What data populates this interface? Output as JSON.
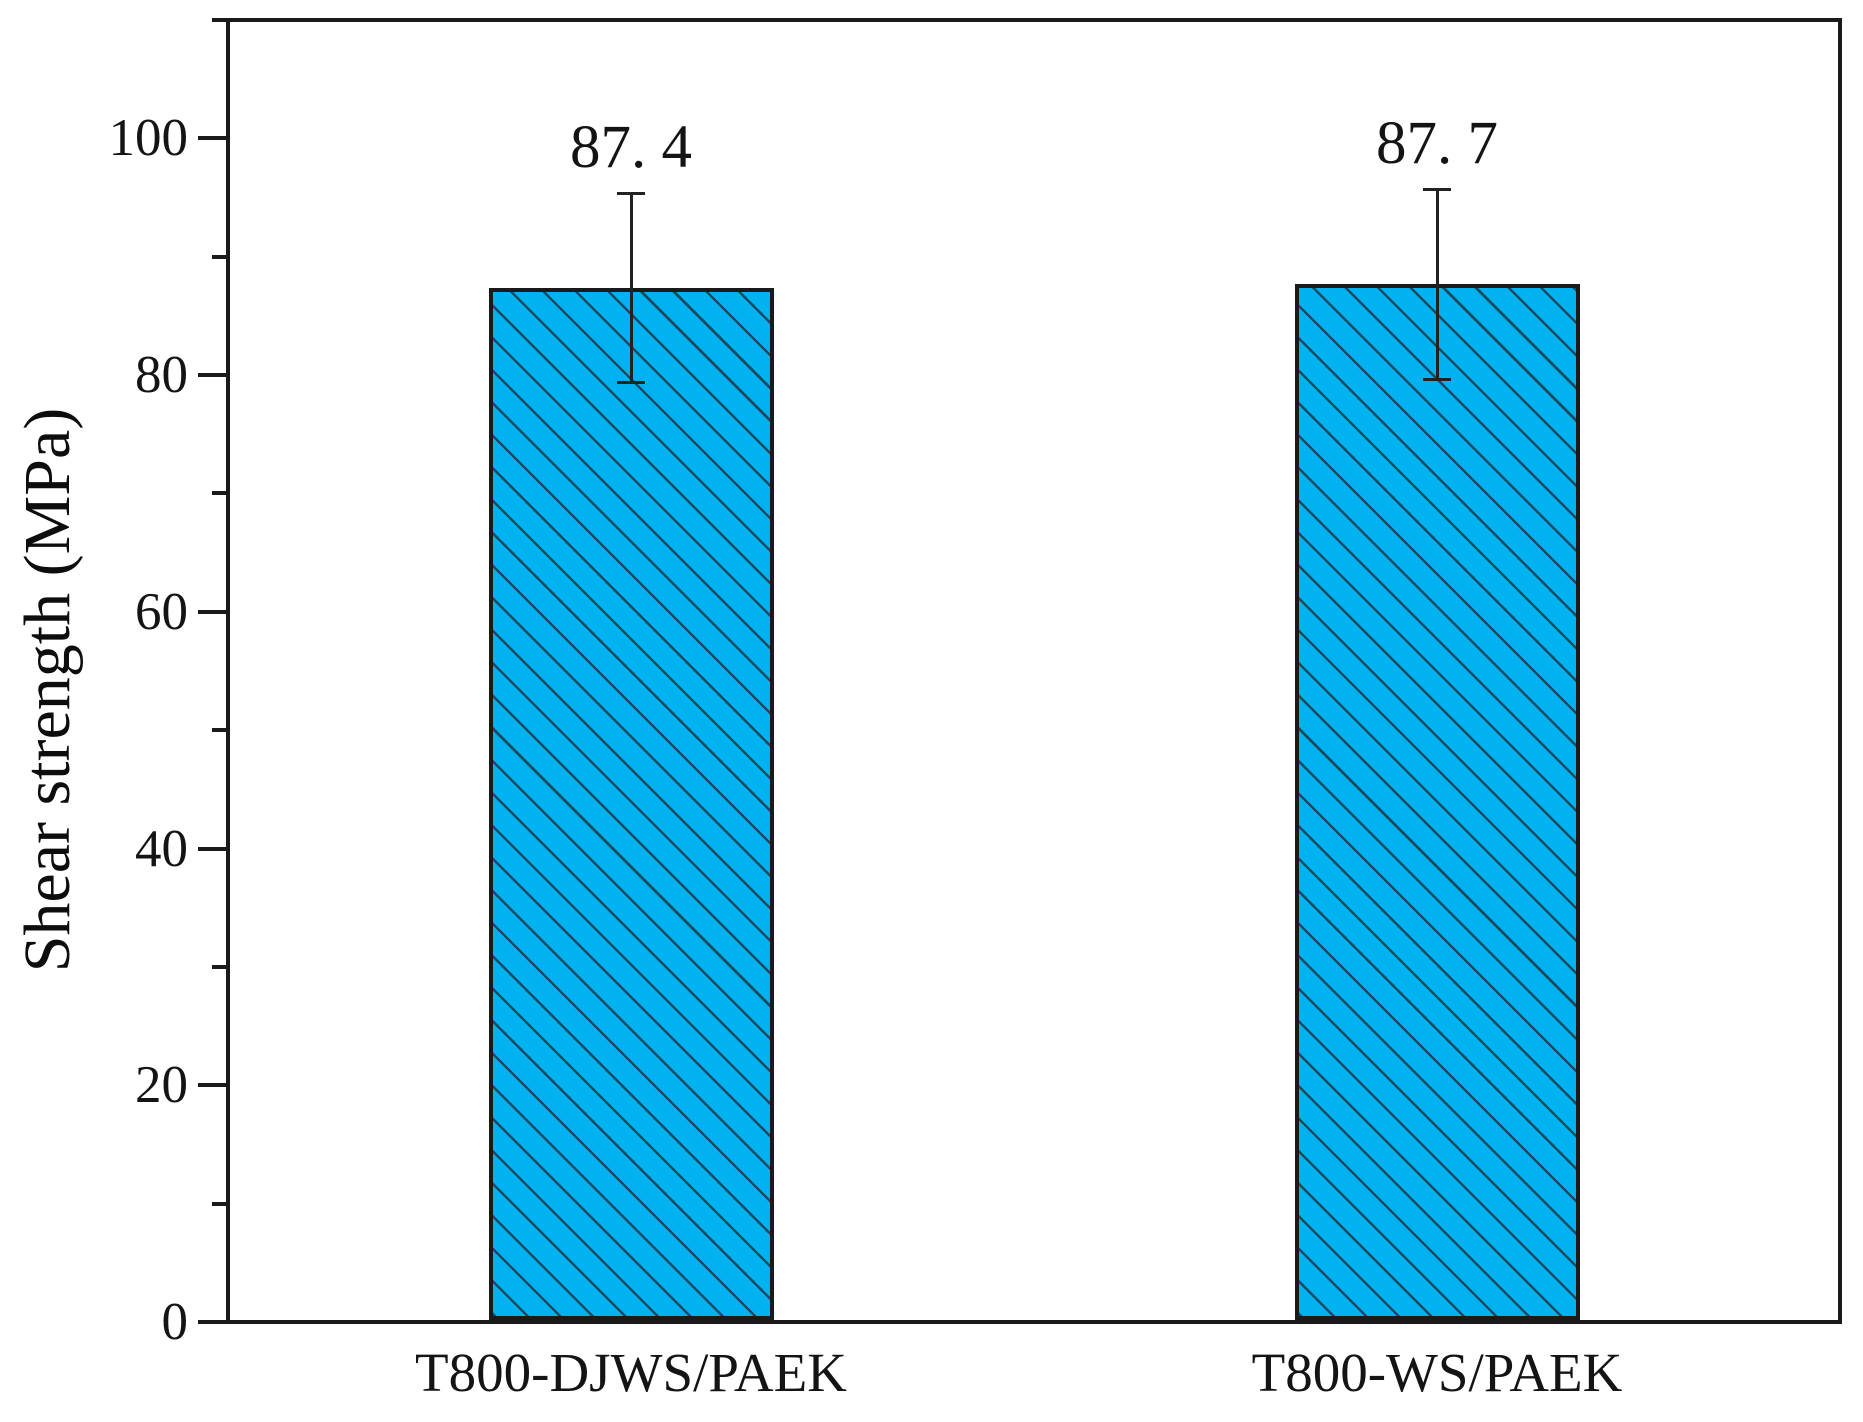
{
  "chart_data": {
    "type": "bar",
    "ylabel": "Shear strength (MPa)",
    "categories": [
      "T800-DJWS/PAEK",
      "T800-WS/PAEK"
    ],
    "values": [
      87.4,
      87.7
    ],
    "value_labels": [
      "87. 4",
      "87. 7"
    ],
    "errors": [
      8.0,
      8.0
    ],
    "ylim": [
      0,
      110
    ],
    "ytick_major": [
      0,
      20,
      40,
      60,
      80,
      100
    ],
    "ytick_minor": [
      10,
      30,
      50,
      70,
      90,
      110
    ],
    "grid": false,
    "legend": "none",
    "bar_color": "#00b2f0",
    "hatch": "\\",
    "hatch_color": "#1d4a63",
    "axis_color": "#1a1a1a",
    "error_bar_color": "#222222"
  }
}
